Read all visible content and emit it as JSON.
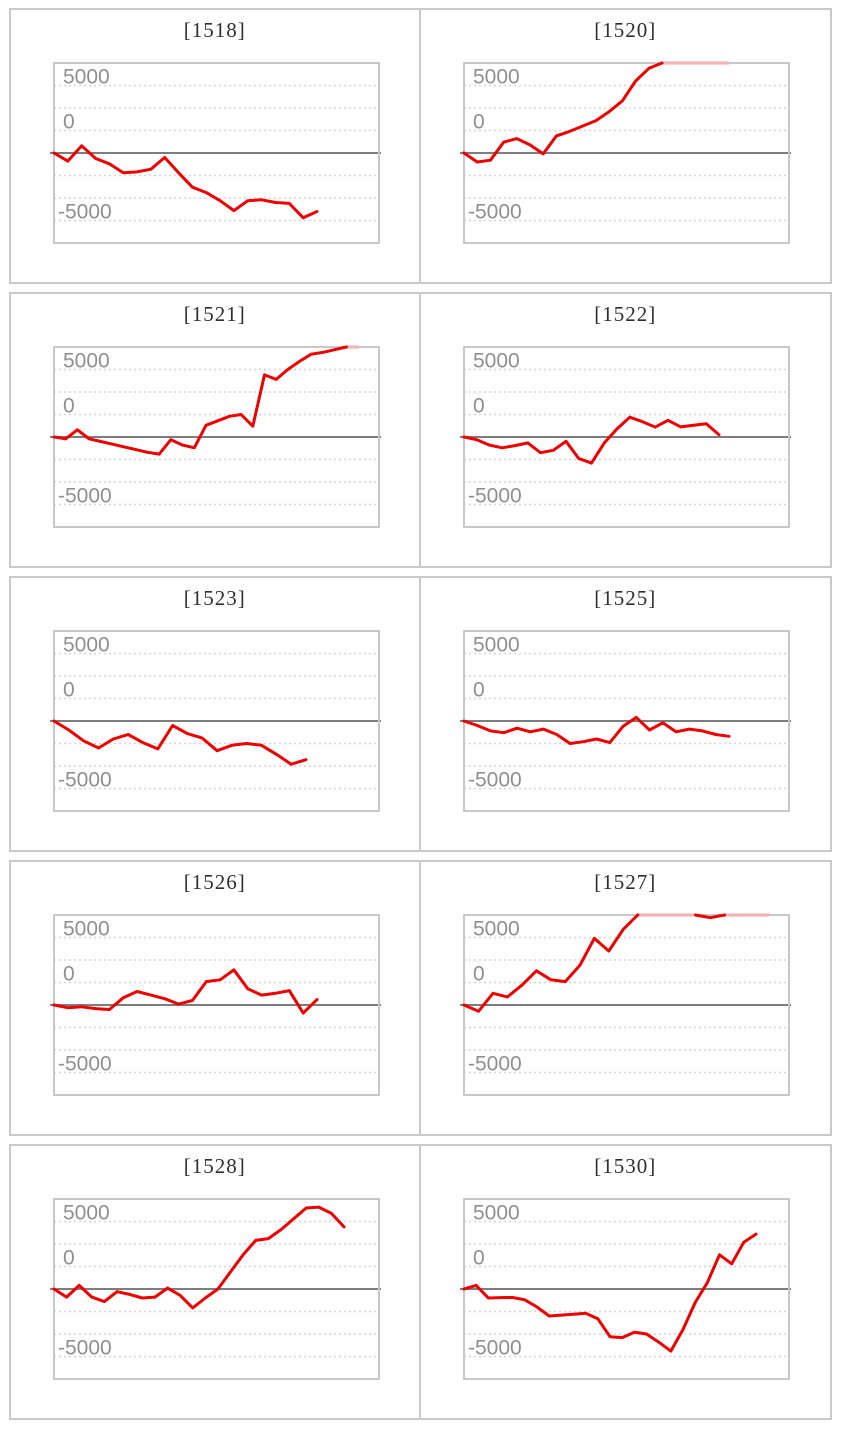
{
  "page": {
    "background": "#ffffff"
  },
  "colors": {
    "line_red": "#ec0000",
    "line_clamped_pink": "#f1b4b9",
    "grid_dotted": "#d5d5d5",
    "zero_line": "#7d7d7d",
    "chart_frame": "#c8c8c8",
    "panel_border": "#c9c9c9",
    "axis_label": "#8f8f8f",
    "title_color": "#2f2f2f"
  },
  "axis": {
    "tick_labels": [
      "5000",
      "0",
      "-5000"
    ],
    "ymax": 5000,
    "ymin": -5000,
    "gridline_step": 1250,
    "zero_line_solid": true,
    "grid_style": "dotted"
  },
  "chart_data": [
    {
      "type": "line",
      "title": "[1518]",
      "ylim": [
        -5000,
        5000
      ],
      "x_end": 263,
      "clamped": false,
      "values": [
        0,
        -450,
        400,
        -300,
        -600,
        -1100,
        -1050,
        -900,
        -250,
        -1100,
        -1900,
        -2200,
        -2650,
        -3200,
        -2650,
        -2600,
        -2750,
        -2800,
        -3600,
        -3250
      ]
    },
    {
      "type": "line",
      "title": "[1520]",
      "ylim": [
        -5000,
        5000
      ],
      "x_end": 264,
      "clamped": true,
      "clamp_value": 5000,
      "values": [
        0,
        -500,
        -400,
        600,
        800,
        450,
        -50,
        950,
        1200,
        1500,
        1800,
        2300,
        2900,
        4000,
        4700,
        5000,
        5000,
        5000,
        5000,
        5000,
        5000
      ]
    },
    {
      "type": "line",
      "title": "[1521]",
      "ylim": [
        -5000,
        5000
      ],
      "x_end": 304,
      "clamped": true,
      "clamp_value": 5000,
      "values": [
        0,
        -100,
        400,
        -100,
        -250,
        -400,
        -550,
        -700,
        -850,
        -950,
        -150,
        -450,
        -600,
        650,
        900,
        1150,
        1250,
        600,
        3450,
        3200,
        3750,
        4200,
        4600,
        4700,
        4850,
        5000,
        5000
      ]
    },
    {
      "type": "line",
      "title": "[1522]",
      "ylim": [
        -5000,
        5000
      ],
      "x_end": 255,
      "clamped": false,
      "values": [
        0,
        -150,
        -450,
        -600,
        -480,
        -330,
        -870,
        -740,
        -240,
        -1200,
        -1450,
        -330,
        450,
        1100,
        850,
        550,
        930,
        560,
        650,
        740,
        130
      ]
    },
    {
      "type": "line",
      "title": "[1523]",
      "ylim": [
        -5000,
        5000
      ],
      "x_end": 252,
      "clamped": false,
      "values": [
        0,
        -500,
        -1100,
        -1500,
        -1000,
        -750,
        -1200,
        -1550,
        -250,
        -700,
        -950,
        -1650,
        -1350,
        -1250,
        -1350,
        -1850,
        -2400,
        -2150
      ]
    },
    {
      "type": "line",
      "title": "[1525]",
      "ylim": [
        -5000,
        5000
      ],
      "x_end": 265,
      "clamped": false,
      "values": [
        0,
        -250,
        -550,
        -650,
        -400,
        -600,
        -450,
        -750,
        -1250,
        -1150,
        -1000,
        -1200,
        -300,
        200,
        -500,
        -100,
        -600,
        -450,
        -550,
        -750,
        -850
      ]
    },
    {
      "type": "line",
      "title": "[1526]",
      "ylim": [
        -5000,
        5000
      ],
      "x_end": 263,
      "clamped": false,
      "values": [
        0,
        -150,
        -100,
        -200,
        -250,
        400,
        750,
        550,
        350,
        50,
        250,
        1300,
        1400,
        1950,
        900,
        550,
        650,
        800,
        -450,
        300
      ]
    },
    {
      "type": "line",
      "title": "[1527]",
      "ylim": [
        -5000,
        5000
      ],
      "x_end": 304,
      "clamped": true,
      "clamp_value": 5000,
      "values": [
        0,
        -350,
        650,
        450,
        1100,
        1900,
        1400,
        1300,
        2200,
        3700,
        3000,
        4200,
        5000,
        5000,
        5000,
        5000,
        5000,
        4850,
        5000,
        5000,
        5000,
        5000
      ]
    },
    {
      "type": "line",
      "title": "[1528]",
      "ylim": [
        -5000,
        5000
      ],
      "x_end": 290,
      "clamped": false,
      "values": [
        0,
        -450,
        200,
        -450,
        -700,
        -150,
        -300,
        -500,
        -450,
        50,
        -350,
        -1050,
        -500,
        0,
        950,
        1900,
        2700,
        2800,
        3300,
        3900,
        4500,
        4550,
        4200,
        3450
      ]
    },
    {
      "type": "line",
      "title": "[1530]",
      "ylim": [
        -5000,
        5000
      ],
      "x_end": 292,
      "clamped": false,
      "values": [
        0,
        200,
        -500,
        -480,
        -470,
        -600,
        -1000,
        -1500,
        -1450,
        -1400,
        -1350,
        -1650,
        -2650,
        -2700,
        -2400,
        -2500,
        -2950,
        -3450,
        -2250,
        -750,
        350,
        1900,
        1400,
        2600,
        3050
      ]
    }
  ],
  "layout_rows": [
    [
      0,
      1
    ],
    [
      2,
      3
    ],
    [
      4,
      5
    ],
    [
      6,
      7
    ],
    [
      8,
      9
    ]
  ]
}
